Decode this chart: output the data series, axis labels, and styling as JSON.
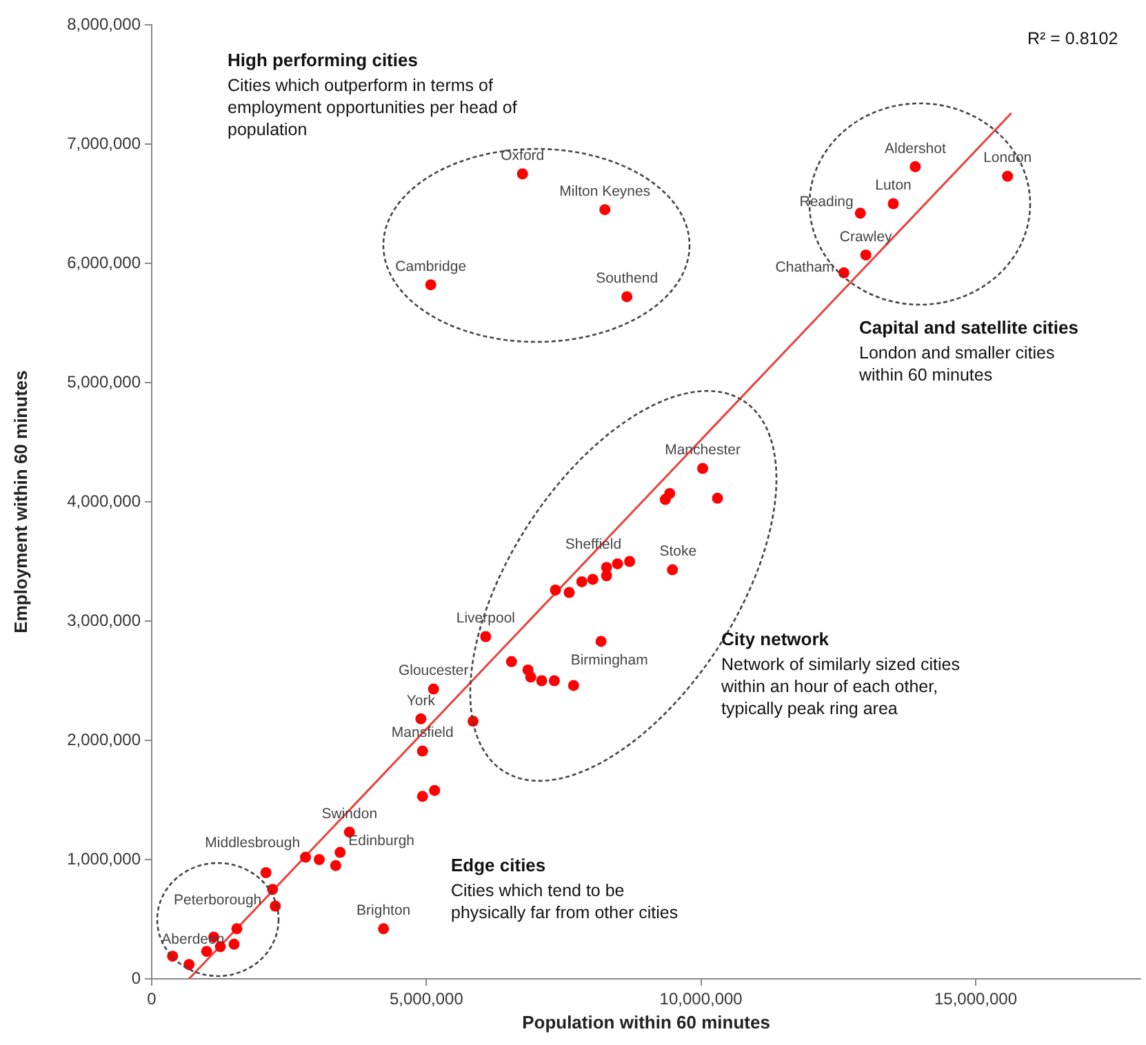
{
  "chart_data": {
    "type": "scatter",
    "xlabel": "Population within 60 minutes",
    "ylabel": "Employment within 60 minutes",
    "xlim": [
      0,
      18000000
    ],
    "ylim": [
      0,
      8000000
    ],
    "xticks": [
      0,
      {
        "value": 5000000,
        "label": "5,000,000"
      },
      {
        "value": 10000000,
        "label": "10,000,000"
      },
      {
        "value": 15000000,
        "label": "15,000,000"
      }
    ],
    "yticks": [
      0,
      {
        "value": 1000000,
        "label": "1,000,000"
      },
      {
        "value": 2000000,
        "label": "2,000,000"
      },
      {
        "value": 3000000,
        "label": "3,000,000"
      },
      {
        "value": 4000000,
        "label": "4,000,000"
      },
      {
        "value": 5000000,
        "label": "5,000,000"
      },
      {
        "value": 6000000,
        "label": "6,000,000"
      },
      {
        "value": 7000000,
        "label": "7,000,000"
      },
      {
        "value": 8000000,
        "label": "8,000,000"
      }
    ],
    "grid": false,
    "legend": false,
    "marker": "circle",
    "series": [
      {
        "type": "scatter",
        "color": "#ff0000",
        "x": [
          6750000,
          8250000,
          5080000,
          8650000,
          13900000,
          15580000,
          13500000,
          12900000,
          13000000,
          12600000,
          10030000,
          9350000,
          9430000,
          10300000,
          9480000,
          8700000,
          8480000,
          8280000,
          8280000,
          8030000,
          7830000,
          7600000,
          7350000,
          6080000,
          8180000,
          6550000,
          6850000,
          6900000,
          7100000,
          7330000,
          7680000,
          5130000,
          4900000,
          5850000,
          4930000,
          4930000,
          5150000,
          3600000,
          3430000,
          2800000,
          3050000,
          3350000,
          2080000,
          2200000,
          2250000,
          4220000,
          1550000,
          1500000,
          1250000,
          1000000,
          1130000,
          380000,
          680000
        ],
        "values": [
          6750000,
          6450000,
          5820000,
          5720000,
          6810000,
          6730000,
          6500000,
          6420000,
          6070000,
          5920000,
          4280000,
          4020000,
          4070000,
          4030000,
          3430000,
          3500000,
          3480000,
          3450000,
          3380000,
          3350000,
          3330000,
          3240000,
          3260000,
          2870000,
          2830000,
          2660000,
          2590000,
          2530000,
          2500000,
          2500000,
          2460000,
          2430000,
          2180000,
          2160000,
          1910000,
          1530000,
          1580000,
          1230000,
          1060000,
          1020000,
          1000000,
          950000,
          890000,
          750000,
          610000,
          420000,
          420000,
          290000,
          270000,
          230000,
          350000,
          190000,
          120000
        ]
      },
      {
        "type": "line",
        "color": "#e8413c",
        "marker": "none",
        "line_style": "solid",
        "x": [
          680000,
          15650000
        ],
        "values": [
          0,
          7260000
        ]
      }
    ],
    "annotations": [
      "R² = 0.8102",
      "High performing cities",
      "Cities which outperform in terms of employment opportunities per head of population",
      "Capital and satellite cities",
      "London and smaller cities within 60 minutes",
      "City network",
      "Network of similarly sized cities within an hour of each other, typically peak ring area",
      "Edge cities",
      "Cities which tend to be physically far from other cities",
      {
        "text": "Oxford",
        "x": 6750000,
        "y": 6750000
      },
      {
        "text": "Milton Keynes",
        "x": 8250000,
        "y": 6450000
      },
      {
        "text": "Cambridge",
        "x": 5080000,
        "y": 5820000
      },
      {
        "text": "Southend",
        "x": 8650000,
        "y": 5720000
      },
      {
        "text": "Aldershot",
        "x": 13900000,
        "y": 6810000
      },
      {
        "text": "London",
        "x": 15580000,
        "y": 6730000
      },
      {
        "text": "Luton",
        "x": 13500000,
        "y": 6500000
      },
      {
        "text": "Reading",
        "x": 12900000,
        "y": 6420000
      },
      {
        "text": "Crawley",
        "x": 13000000,
        "y": 6070000
      },
      {
        "text": "Chatham",
        "x": 12600000,
        "y": 5920000
      },
      {
        "text": "Manchester",
        "x": 10030000,
        "y": 4280000
      },
      {
        "text": "Sheffield",
        "x": 8700000,
        "y": 3500000
      },
      {
        "text": "Stoke",
        "x": 9480000,
        "y": 3430000
      },
      {
        "text": "Liverpool",
        "x": 6080000,
        "y": 2870000
      },
      {
        "text": "Birmingham",
        "x": 8180000,
        "y": 2830000
      },
      {
        "text": "Gloucester",
        "x": 5130000,
        "y": 2430000
      },
      {
        "text": "York",
        "x": 4900000,
        "y": 2180000
      },
      {
        "text": "Mansfield",
        "x": 4930000,
        "y": 1910000
      },
      {
        "text": "Swindon",
        "x": 3600000,
        "y": 1230000
      },
      {
        "text": "Edinburgh",
        "x": 3430000,
        "y": 1060000
      },
      {
        "text": "Middlesbrough",
        "x": 2800000,
        "y": 1020000
      },
      {
        "text": "Peterborough",
        "x": 2250000,
        "y": 610000
      },
      {
        "text": "Brighton",
        "x": 4220000,
        "y": 420000
      },
      {
        "text": "Aberdeen",
        "x": 380000,
        "y": 190000
      }
    ]
  }
}
